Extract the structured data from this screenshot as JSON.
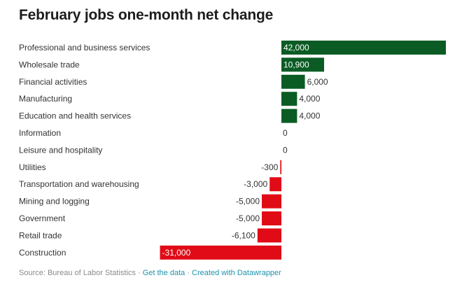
{
  "header": {
    "title": "February jobs one-month net change"
  },
  "chart_data": {
    "type": "bar",
    "orientation": "horizontal",
    "title": "February jobs one-month net change",
    "xlabel": "",
    "ylabel": "",
    "grid": false,
    "legend": "none",
    "xlim": [
      -31000,
      42000
    ],
    "colors": {
      "positive": "#0b5c24",
      "negative": "#e00b16"
    },
    "categories": [
      "Professional and business services",
      "Wholesale trade",
      "Financial activities",
      "Manufacturing",
      "Education and health services",
      "Information",
      "Leisure and hospitality",
      "Utilities",
      "Transportation and warehousing",
      "Mining and logging",
      "Government",
      "Retail trade",
      "Construction"
    ],
    "values": [
      42000,
      10900,
      6000,
      4000,
      4000,
      0,
      0,
      -300,
      -3000,
      -5000,
      -5000,
      -6100,
      -31000
    ],
    "labels": [
      "42,000",
      "10,900",
      "6,000",
      "4,000",
      "4,000",
      "0",
      "0",
      "-300",
      "-3,000",
      "-5,000",
      "-5,000",
      "-6,100",
      "-31,000"
    ]
  },
  "footer": {
    "source": "Source: Bureau of Labor Statistics",
    "separator": " · ",
    "get_data": "Get the data",
    "created_with": "Created with Datawrapper"
  }
}
